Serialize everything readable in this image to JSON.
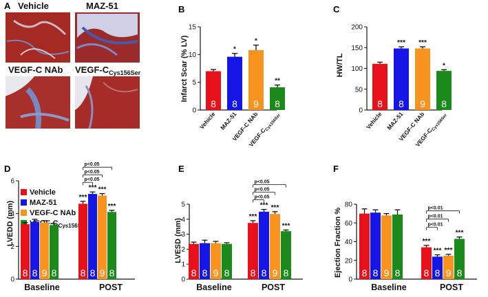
{
  "panels_a": {
    "letter": "A",
    "images": [
      {
        "label": "Vehicle",
        "tissue": "red-muscle"
      },
      {
        "label": "MAZ-51",
        "tissue": "blue-fibrosis"
      },
      {
        "label": "VEGF-C NAb",
        "tissue": "mixed"
      },
      {
        "label": "VEGF-C",
        "sub": "Cys156Ser",
        "tissue": "red-muscle"
      }
    ]
  },
  "colors": {
    "vehicle": "#e8101a",
    "maz51": "#1515e6",
    "nab": "#f7931e",
    "cys": "#1a8a1a"
  },
  "chart_data": [
    {
      "id": "B",
      "type": "bar",
      "ylabel": "Infarct Scar (% LV)",
      "ylim": [
        0,
        15
      ],
      "yticks": [
        0,
        5,
        10,
        15
      ],
      "categories": [
        "Vehicle",
        "MAZ-51",
        "VEGF-C NAb",
        "VEGF-C"
      ],
      "category_sub": [
        "",
        "",
        "",
        "Cys156Ser"
      ],
      "values": [
        7.0,
        9.6,
        10.8,
        4.1
      ],
      "errors": [
        0.3,
        0.6,
        0.9,
        0.4
      ],
      "n": [
        "8",
        "8",
        "9",
        "8"
      ],
      "stars": [
        "",
        "*",
        "*",
        "**"
      ]
    },
    {
      "id": "C",
      "type": "bar",
      "ylabel": "HW/TL",
      "ylim": [
        0,
        200
      ],
      "yticks": [
        0,
        50,
        100,
        150,
        200
      ],
      "categories": [
        "Vehicle",
        "MAZ-51",
        "VEGF-C NAb",
        "VEGF-C"
      ],
      "category_sub": [
        "",
        "",
        "",
        "Cys156Ser"
      ],
      "values": [
        111,
        148,
        148,
        94
      ],
      "errors": [
        4,
        4,
        4,
        3
      ],
      "n": [
        "8",
        "8",
        "9",
        "8"
      ],
      "stars": [
        "",
        "***",
        "***",
        "*"
      ]
    },
    {
      "id": "D",
      "type": "bar",
      "ylabel": "LVEDD (mm)",
      "ylim": [
        0,
        6
      ],
      "yticks": [
        0,
        2,
        4,
        6
      ],
      "groups": [
        "Baseline",
        "POST"
      ],
      "legend": [
        "Vehicle",
        "MAZ-51",
        "VEGF-C NAb",
        "VEGF-C"
      ],
      "legend_sub": [
        "",
        "",
        "",
        "Cys156Ser"
      ],
      "series_values": [
        [
          3.35,
          3.5,
          3.45,
          3.3
        ],
        [
          4.6,
          5.2,
          5.1,
          4.1
        ]
      ],
      "series_errors": [
        [
          0.1,
          0.15,
          0.12,
          0.1
        ],
        [
          0.15,
          0.12,
          0.12,
          0.1
        ]
      ],
      "n": [
        "8",
        "8",
        "9",
        "8"
      ],
      "post_stars": [
        "***",
        "***",
        "***",
        "***"
      ],
      "pvals": [
        "p<0.05",
        "p<0.05",
        "p<0.05"
      ]
    },
    {
      "id": "E",
      "type": "bar",
      "ylabel": "LVESD (mm)",
      "ylim": [
        0,
        5
      ],
      "yticks": [
        0,
        1,
        2,
        3,
        4,
        5
      ],
      "groups": [
        "Baseline",
        "POST"
      ],
      "series_values": [
        [
          2.35,
          2.4,
          2.4,
          2.35
        ],
        [
          3.75,
          4.5,
          4.35,
          3.2
        ]
      ],
      "series_errors": [
        [
          0.12,
          0.2,
          0.12,
          0.08
        ],
        [
          0.15,
          0.15,
          0.15,
          0.08
        ]
      ],
      "n": [
        "8",
        "8",
        "9",
        "8"
      ],
      "post_stars": [
        "***",
        "***",
        "***",
        "***"
      ],
      "pvals": [
        "p<0.05",
        "p<0.05",
        "p<0.05"
      ]
    },
    {
      "id": "F",
      "type": "bar",
      "ylabel": "Ejection Fraction %",
      "ylim": [
        0,
        80
      ],
      "yticks": [
        0,
        20,
        40,
        60,
        80
      ],
      "groups": [
        "Baseline",
        "POST"
      ],
      "series_values": [
        [
          70,
          71,
          68,
          69
        ],
        [
          34,
          24,
          25,
          43
        ]
      ],
      "series_errors": [
        [
          5,
          3,
          2,
          5
        ],
        [
          2,
          2,
          1.5,
          2
        ]
      ],
      "n": [
        "8",
        "8",
        "9",
        "8"
      ],
      "post_stars": [
        "***",
        "***",
        "***",
        "***"
      ],
      "pvals": [
        "p<0.01",
        "p<0.01",
        "p<0.01"
      ]
    }
  ]
}
